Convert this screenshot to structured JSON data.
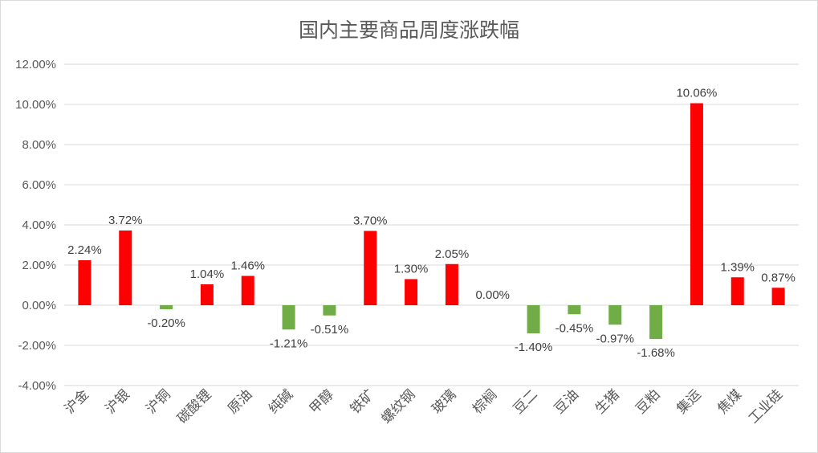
{
  "chart_data": {
    "type": "bar",
    "title": "国内主要商品周度涨跌幅",
    "categories": [
      "沪金",
      "沪银",
      "沪铜",
      "碳酸锂",
      "原油",
      "纯碱",
      "甲醇",
      "铁矿",
      "螺纹钢",
      "玻璃",
      "棕榈",
      "豆二",
      "豆油",
      "生猪",
      "豆粕",
      "集运",
      "焦煤",
      "工业硅"
    ],
    "values": [
      2.24,
      3.72,
      -0.2,
      1.04,
      1.46,
      -1.21,
      -0.51,
      3.7,
      1.3,
      2.05,
      0.0,
      -1.4,
      -0.45,
      -0.97,
      -1.68,
      10.06,
      1.39,
      0.87
    ],
    "data_labels": [
      "2.24%",
      "3.72%",
      "-0.20%",
      "1.04%",
      "1.46%",
      "-1.21%",
      "-0.51%",
      "3.70%",
      "1.30%",
      "2.05%",
      "0.00%",
      "-1.40%",
      "-0.45%",
      "-0.97%",
      "-1.68%",
      "10.06%",
      "1.39%",
      "0.87%"
    ],
    "ylim": [
      -4,
      12
    ],
    "yticks": [
      "12.00%",
      "10.00%",
      "8.00%",
      "6.00%",
      "4.00%",
      "2.00%",
      "0.00%",
      "-2.00%",
      "-4.00%"
    ],
    "grid": true,
    "colors": {
      "positive": "#ff0000",
      "negative": "#70ad47",
      "grid": "#d9d9d9"
    }
  }
}
